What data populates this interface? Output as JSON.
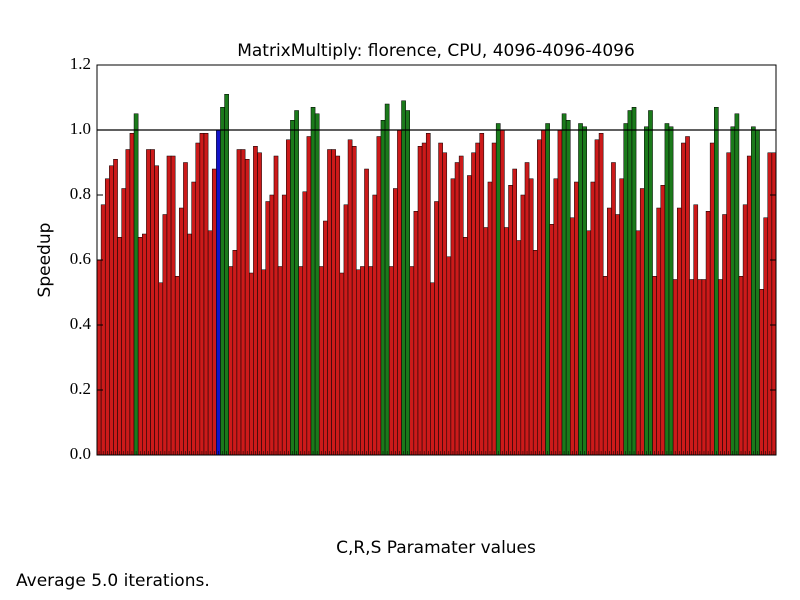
{
  "chart_data": {
    "type": "bar",
    "title": "MatrixMultiply: florence, CPU, 4096-4096-4096",
    "xlabel": "C,R,S Paramater values",
    "ylabel": "Speedup",
    "footnote": "Average 5.0 iterations.",
    "values": [
      0.6,
      0.77,
      0.85,
      0.89,
      0.91,
      0.67,
      0.82,
      0.94,
      0.99,
      1.05,
      0.67,
      0.68,
      0.94,
      0.94,
      0.89,
      0.53,
      0.74,
      0.92,
      0.92,
      0.55,
      0.76,
      0.9,
      0.68,
      0.84,
      0.96,
      0.99,
      0.99,
      0.69,
      0.88,
      1.0,
      1.07,
      1.11,
      0.58,
      0.63,
      0.94,
      0.94,
      0.91,
      0.56,
      0.95,
      0.93,
      0.57,
      0.78,
      0.8,
      0.92,
      0.58,
      0.8,
      0.97,
      1.03,
      1.06,
      0.58,
      0.81,
      0.98,
      1.07,
      1.05,
      0.58,
      0.72,
      0.94,
      0.94,
      0.92,
      0.56,
      0.77,
      0.97,
      0.95,
      0.57,
      0.58,
      0.88,
      0.58,
      0.8,
      0.98,
      1.03,
      1.08,
      0.58,
      0.82,
      1.0,
      1.09,
      1.06,
      0.58,
      0.75,
      0.95,
      0.96,
      0.99,
      0.53,
      0.78,
      0.96,
      0.93,
      0.61,
      0.85,
      0.9,
      0.92,
      0.67,
      0.86,
      0.93,
      0.96,
      0.99,
      0.7,
      0.84,
      0.96,
      1.02,
      1.0,
      0.7,
      0.83,
      0.88,
      0.66,
      0.8,
      0.9,
      0.85,
      0.63,
      0.97,
      1.0,
      1.02,
      0.71,
      0.85,
      1.0,
      1.05,
      1.03,
      0.73,
      0.84,
      1.02,
      1.01,
      0.69,
      0.84,
      0.97,
      0.99,
      0.55,
      0.76,
      0.9,
      0.74,
      0.85,
      1.02,
      1.06,
      1.07,
      0.69,
      0.82,
      1.01,
      1.06,
      0.55,
      0.76,
      0.83,
      1.02,
      1.01,
      0.54,
      0.76,
      0.96,
      0.98,
      0.54,
      0.77,
      0.54,
      0.54,
      0.75,
      0.96,
      1.07,
      0.54,
      0.74,
      0.93,
      1.01,
      1.05,
      0.55,
      0.77,
      0.92,
      1.01,
      1.0,
      0.51,
      0.73,
      0.93,
      0.93
    ],
    "colors": [
      "#cc1a1a",
      "#cc1a1a",
      "#cc1a1a",
      "#cc1a1a",
      "#cc1a1a",
      "#cc1a1a",
      "#cc1a1a",
      "#cc1a1a",
      "#cc1a1a",
      "#1b7a1b",
      "#cc1a1a",
      "#cc1a1a",
      "#cc1a1a",
      "#cc1a1a",
      "#cc1a1a",
      "#cc1a1a",
      "#cc1a1a",
      "#cc1a1a",
      "#cc1a1a",
      "#cc1a1a",
      "#cc1a1a",
      "#cc1a1a",
      "#cc1a1a",
      "#cc1a1a",
      "#cc1a1a",
      "#cc1a1a",
      "#cc1a1a",
      "#cc1a1a",
      "#cc1a1a",
      "#1212c8",
      "#1b7a1b",
      "#1b7a1b",
      "#cc1a1a",
      "#cc1a1a",
      "#cc1a1a",
      "#cc1a1a",
      "#cc1a1a",
      "#cc1a1a",
      "#cc1a1a",
      "#cc1a1a",
      "#cc1a1a",
      "#cc1a1a",
      "#cc1a1a",
      "#cc1a1a",
      "#cc1a1a",
      "#cc1a1a",
      "#cc1a1a",
      "#1b7a1b",
      "#1b7a1b",
      "#cc1a1a",
      "#cc1a1a",
      "#cc1a1a",
      "#1b7a1b",
      "#1b7a1b",
      "#cc1a1a",
      "#cc1a1a",
      "#cc1a1a",
      "#cc1a1a",
      "#cc1a1a",
      "#cc1a1a",
      "#cc1a1a",
      "#cc1a1a",
      "#cc1a1a",
      "#cc1a1a",
      "#cc1a1a",
      "#cc1a1a",
      "#cc1a1a",
      "#cc1a1a",
      "#cc1a1a",
      "#1b7a1b",
      "#1b7a1b",
      "#cc1a1a",
      "#cc1a1a",
      "#cc1a1a",
      "#1b7a1b",
      "#1b7a1b",
      "#cc1a1a",
      "#cc1a1a",
      "#cc1a1a",
      "#cc1a1a",
      "#cc1a1a",
      "#cc1a1a",
      "#cc1a1a",
      "#cc1a1a",
      "#cc1a1a",
      "#cc1a1a",
      "#cc1a1a",
      "#cc1a1a",
      "#cc1a1a",
      "#cc1a1a",
      "#cc1a1a",
      "#cc1a1a",
      "#cc1a1a",
      "#cc1a1a",
      "#cc1a1a",
      "#cc1a1a",
      "#cc1a1a",
      "#1b7a1b",
      "#cc1a1a",
      "#cc1a1a",
      "#cc1a1a",
      "#cc1a1a",
      "#cc1a1a",
      "#cc1a1a",
      "#cc1a1a",
      "#cc1a1a",
      "#cc1a1a",
      "#cc1a1a",
      "#cc1a1a",
      "#1b7a1b",
      "#cc1a1a",
      "#cc1a1a",
      "#cc1a1a",
      "#1b7a1b",
      "#1b7a1b",
      "#cc1a1a",
      "#cc1a1a",
      "#1b7a1b",
      "#1b7a1b",
      "#cc1a1a",
      "#cc1a1a",
      "#cc1a1a",
      "#cc1a1a",
      "#cc1a1a",
      "#cc1a1a",
      "#cc1a1a",
      "#cc1a1a",
      "#cc1a1a",
      "#1b7a1b",
      "#1b7a1b",
      "#1b7a1b",
      "#cc1a1a",
      "#cc1a1a",
      "#1b7a1b",
      "#1b7a1b",
      "#cc1a1a",
      "#cc1a1a",
      "#cc1a1a",
      "#1b7a1b",
      "#1b7a1b",
      "#cc1a1a",
      "#cc1a1a",
      "#cc1a1a",
      "#cc1a1a",
      "#cc1a1a",
      "#cc1a1a",
      "#cc1a1a",
      "#cc1a1a",
      "#cc1a1a",
      "#cc1a1a",
      "#1b7a1b",
      "#cc1a1a",
      "#cc1a1a",
      "#cc1a1a",
      "#1b7a1b",
      "#1b7a1b",
      "#cc1a1a",
      "#cc1a1a",
      "#cc1a1a",
      "#1b7a1b",
      "#1b7a1b",
      "#cc1a1a",
      "#cc1a1a",
      "#cc1a1a",
      "#cc1a1a"
    ],
    "hline": 1.0,
    "ylim": [
      0,
      1.2
    ],
    "yticks": [
      {
        "value": 0,
        "label": "0.0"
      },
      {
        "value": 0.2,
        "label": "0.2"
      },
      {
        "value": 0.4,
        "label": "0.4"
      },
      {
        "value": 0.6,
        "label": "0.6"
      },
      {
        "value": 0.8,
        "label": "0.8"
      },
      {
        "value": 1.0,
        "label": "1.0"
      },
      {
        "value": 1.2,
        "label": "1.2"
      }
    ]
  }
}
